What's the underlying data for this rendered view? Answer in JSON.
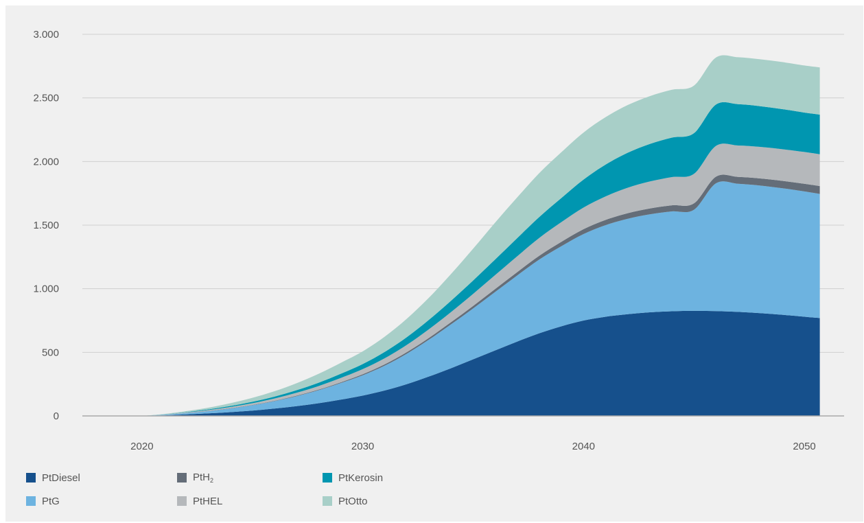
{
  "chart_data": {
    "type": "area",
    "stacked": true,
    "title": "",
    "xlabel": "",
    "ylabel": "",
    "xlim": [
      2017.3,
      2051.8
    ],
    "ylim": [
      0,
      3000
    ],
    "x_ticks": [
      2020,
      2030,
      2040,
      2050
    ],
    "y_ticks": [
      0,
      500,
      1000,
      1500,
      2000,
      2500,
      3000
    ],
    "y_tick_labels": [
      "0",
      "500",
      "1.000",
      "1.500",
      "2.000",
      "2.500",
      "3.000"
    ],
    "grid": "horizontal",
    "legend_position": "bottom",
    "x": [
      2020,
      2021,
      2022,
      2023,
      2024,
      2025,
      2026,
      2027,
      2028,
      2029,
      2030,
      2031,
      2032,
      2033,
      2034,
      2035,
      2036,
      2037,
      2038,
      2039,
      2040,
      2041,
      2042,
      2043,
      2044,
      2045,
      2046,
      2047,
      2048,
      2049,
      2050,
      2050.7
    ],
    "series": [
      {
        "name": "PtDiesel",
        "label_main": "PtDiesel",
        "label_sub": "",
        "color": "#16508c",
        "values": [
          0,
          5,
          12,
          20,
          30,
          42,
          58,
          77,
          100,
          128,
          160,
          200,
          250,
          310,
          375,
          445,
          515,
          585,
          650,
          705,
          750,
          780,
          800,
          815,
          823,
          826,
          824,
          818,
          808,
          795,
          780,
          770
        ]
      },
      {
        "name": "PtG",
        "label_main": "PtG",
        "label_sub": "",
        "color": "#6db3e0",
        "values": [
          0,
          4,
          10,
          18,
          28,
          42,
          58,
          78,
          102,
          130,
          160,
          196,
          240,
          290,
          345,
          400,
          460,
          520,
          580,
          630,
          680,
          720,
          750,
          770,
          785,
          795,
          1005,
          1007,
          1003,
          995,
          985,
          975
        ]
      },
      {
        "name": "PtH2",
        "label_main": "PtH",
        "label_sub": "2",
        "color": "#646d78",
        "values": [
          0,
          0,
          1,
          1,
          2,
          2,
          3,
          4,
          5,
          6,
          8,
          10,
          12,
          14,
          17,
          20,
          23,
          26,
          30,
          34,
          38,
          41,
          44,
          46,
          48,
          50,
          52,
          54,
          56,
          58,
          60,
          62
        ]
      },
      {
        "name": "PtHEL",
        "label_main": "PtHEL",
        "label_sub": "",
        "color": "#b5b8bb",
        "values": [
          0,
          2,
          4,
          7,
          10,
          14,
          18,
          23,
          28,
          34,
          40,
          48,
          57,
          68,
          80,
          95,
          110,
          125,
          140,
          155,
          170,
          185,
          200,
          212,
          222,
          232,
          242,
          247,
          248,
          249,
          250,
          250
        ]
      },
      {
        "name": "PtKerosin",
        "label_main": "PtKerosin",
        "label_sub": "",
        "color": "#0096b0",
        "values": [
          0,
          1,
          3,
          5,
          8,
          11,
          15,
          20,
          26,
          33,
          40,
          50,
          61,
          74,
          89,
          105,
          123,
          143,
          165,
          190,
          220,
          250,
          275,
          295,
          310,
          320,
          325,
          325,
          320,
          315,
          310,
          312
        ]
      },
      {
        "name": "PtOtto",
        "label_main": "PtOtto",
        "label_sub": "",
        "color": "#a8cfc8",
        "values": [
          0,
          3,
          8,
          14,
          22,
          31,
          42,
          55,
          70,
          86,
          100,
          120,
          145,
          174,
          210,
          250,
          290,
          320,
          345,
          360,
          370,
          373,
          375,
          376,
          376,
          374,
          370,
          369,
          369,
          370,
          370,
          371
        ]
      }
    ]
  }
}
